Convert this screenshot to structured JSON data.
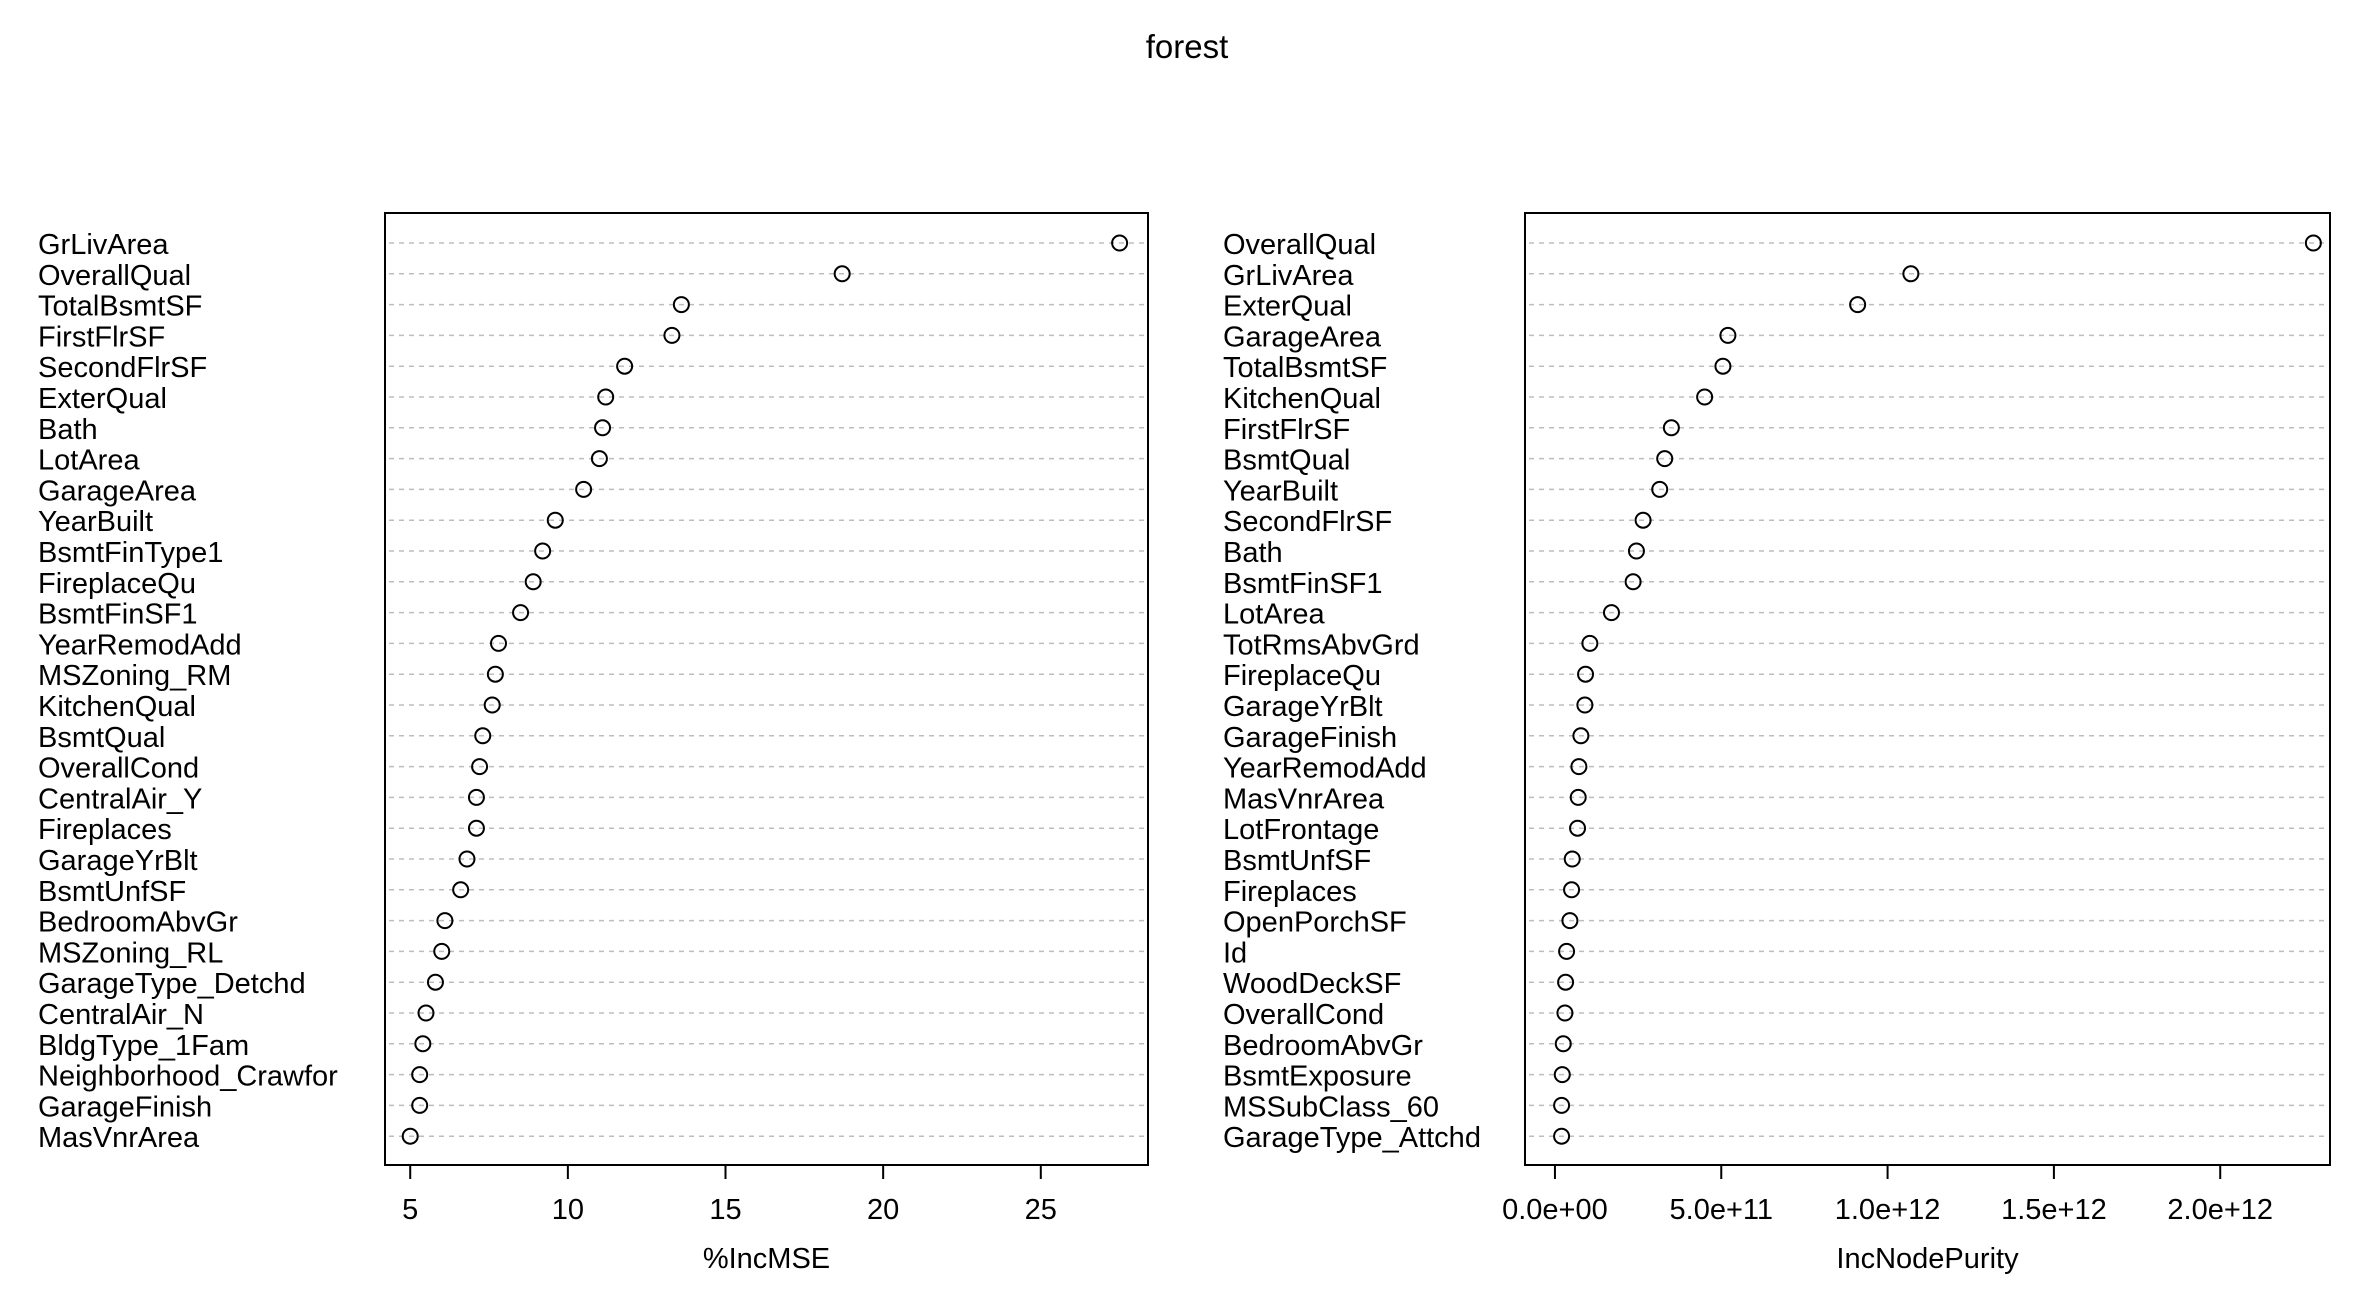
{
  "title": "forest",
  "colors": {
    "grid": "#bdbdbd",
    "frame": "#000000",
    "point": "#000000"
  },
  "chart_data": [
    {
      "type": "scatter",
      "variant": "dot-chart",
      "grid": "horizontal dotted",
      "xlabel": "%IncMSE",
      "xlim": [
        4.2,
        28.4
      ],
      "xticks": [
        5,
        10,
        15,
        20,
        25
      ],
      "xtick_labels": [
        "5",
        "10",
        "15",
        "20",
        "25"
      ],
      "categories": [
        "GrLivArea",
        "OverallQual",
        "TotalBsmtSF",
        "FirstFlrSF",
        "SecondFlrSF",
        "ExterQual",
        "Bath",
        "LotArea",
        "GarageArea",
        "YearBuilt",
        "BsmtFinType1",
        "FireplaceQu",
        "BsmtFinSF1",
        "YearRemodAdd",
        "MSZoning_RM",
        "KitchenQual",
        "BsmtQual",
        "OverallCond",
        "CentralAir_Y",
        "Fireplaces",
        "GarageYrBlt",
        "BsmtUnfSF",
        "BedroomAbvGr",
        "MSZoning_RL",
        "GarageType_Detchd",
        "CentralAir_N",
        "BldgType_1Fam",
        "Neighborhood_Crawfor",
        "GarageFinish",
        "MasVnrArea"
      ],
      "values": [
        27.5,
        18.7,
        13.6,
        13.3,
        11.8,
        11.2,
        11.1,
        11.0,
        10.5,
        9.6,
        9.2,
        8.9,
        8.5,
        7.8,
        7.7,
        7.6,
        7.3,
        7.2,
        7.1,
        7.1,
        6.8,
        6.6,
        6.1,
        6.0,
        5.8,
        5.5,
        5.4,
        5.3,
        5.3,
        5.0
      ]
    },
    {
      "type": "scatter",
      "variant": "dot-chart",
      "grid": "horizontal dotted",
      "xlabel": "IncNodePurity",
      "xlim": [
        -90000000000.0,
        2330000000000.0
      ],
      "xticks": [
        0,
        500000000000.0,
        1000000000000.0,
        1500000000000.0,
        2000000000000.0
      ],
      "xtick_labels": [
        "0.0e+00",
        "5.0e+11",
        "1.0e+12",
        "1.5e+12",
        "2.0e+12"
      ],
      "categories": [
        "OverallQual",
        "GrLivArea",
        "ExterQual",
        "GarageArea",
        "TotalBsmtSF",
        "KitchenQual",
        "FirstFlrSF",
        "BsmtQual",
        "YearBuilt",
        "SecondFlrSF",
        "Bath",
        "BsmtFinSF1",
        "LotArea",
        "TotRmsAbvGrd",
        "FireplaceQu",
        "GarageYrBlt",
        "GarageFinish",
        "YearRemodAdd",
        "MasVnrArea",
        "LotFrontage",
        "BsmtUnfSF",
        "Fireplaces",
        "OpenPorchSF",
        "Id",
        "WoodDeckSF",
        "OverallCond",
        "BedroomAbvGr",
        "BsmtExposure",
        "MSSubClass_60",
        "GarageType_Attchd"
      ],
      "values": [
        2280000000000.0,
        1070000000000.0,
        910000000000.0,
        520000000000.0,
        505000000000.0,
        450000000000.0,
        350000000000.0,
        330000000000.0,
        315000000000.0,
        265000000000.0,
        245000000000.0,
        235000000000.0,
        170000000000.0,
        105000000000.0,
        92000000000.0,
        90000000000.0,
        78000000000.0,
        72000000000.0,
        70000000000.0,
        68000000000.0,
        52000000000.0,
        50000000000.0,
        45000000000.0,
        35000000000.0,
        32000000000.0,
        30000000000.0,
        25000000000.0,
        22000000000.0,
        20000000000.0,
        20000000000.0
      ]
    }
  ]
}
